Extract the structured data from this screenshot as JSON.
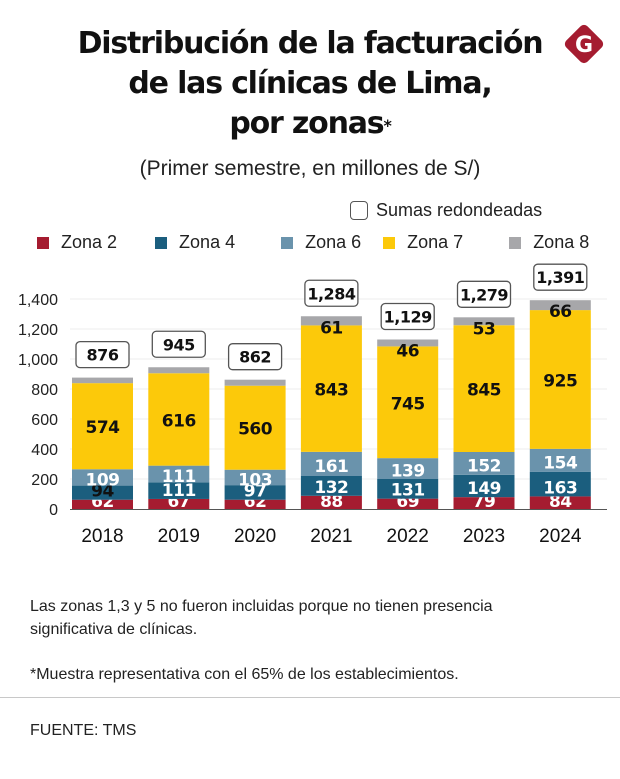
{
  "title_lines": [
    "Distribución de la facturación",
    "de las clínicas de Lima,",
    "por zonas"
  ],
  "title_mark": "*",
  "subtitle": "(Primer semestre, en millones de S/)",
  "logo_letter": "G",
  "logo_color": "#A51C30",
  "sumas_label": "Sumas redondeadas",
  "note_1": "Las zonas 1,3 y 5 no fueron incluidas porque no tienen presencia significativa de clínicas.",
  "note_2": "*Muestra representativa con el 65% de los establecimientos.",
  "source": "FUENTE: TMS",
  "chart_data": {
    "type": "bar",
    "stacked": true,
    "title": "Distribución de la facturación de las clínicas de Lima, por zonas*",
    "subtitle": "(Primer semestre, en millones de S/)",
    "xlabel": "",
    "ylabel": "",
    "ylim": [
      0,
      1400
    ],
    "yticks": [
      0,
      200,
      400,
      600,
      800,
      1000,
      1200,
      1400
    ],
    "ytick_labels": [
      "0",
      "200",
      "400",
      "600",
      "800",
      "1,000",
      "1,200",
      "1,400"
    ],
    "grid": true,
    "legend_position": "top",
    "categories": [
      "2018",
      "2019",
      "2020",
      "2021",
      "2022",
      "2023",
      "2024"
    ],
    "series": [
      {
        "name": "Zona 2",
        "color": "#A51C30",
        "values": [
          62,
          67,
          62,
          88,
          69,
          79,
          84
        ],
        "labels": [
          "62",
          "67",
          "62",
          "88",
          "69",
          "79",
          "84"
        ]
      },
      {
        "name": "Zona 4",
        "color": "#1B5E7E",
        "values": [
          94,
          111,
          97,
          132,
          131,
          149,
          163
        ],
        "labels": [
          "94",
          "111",
          "97",
          "132",
          "131",
          "149",
          "163"
        ]
      },
      {
        "name": "Zona 6",
        "color": "#6A93AC",
        "values": [
          109,
          111,
          103,
          161,
          139,
          152,
          154
        ],
        "labels": [
          "109",
          "111",
          "103",
          "161",
          "139",
          "152",
          "154"
        ]
      },
      {
        "name": "Zona 7",
        "color": "#FCC90A",
        "values": [
          574,
          616,
          560,
          843,
          745,
          845,
          925
        ],
        "labels": [
          "574",
          "616",
          "560",
          "843",
          "745",
          "845",
          "925"
        ]
      },
      {
        "name": "Zona 8",
        "color": "#A7A7AA",
        "values": [
          37,
          40,
          40,
          61,
          46,
          53,
          66
        ],
        "labels": [
          null,
          null,
          null,
          "61",
          "46",
          "53",
          "66"
        ]
      }
    ],
    "totals": [
      876,
      945,
      862,
      1284,
      1129,
      1279,
      1391
    ],
    "total_labels": [
      "876",
      "945",
      "862",
      "1,284",
      "1,129",
      "1,279",
      "1,391"
    ],
    "annotation": "Sumas redondeadas"
  }
}
